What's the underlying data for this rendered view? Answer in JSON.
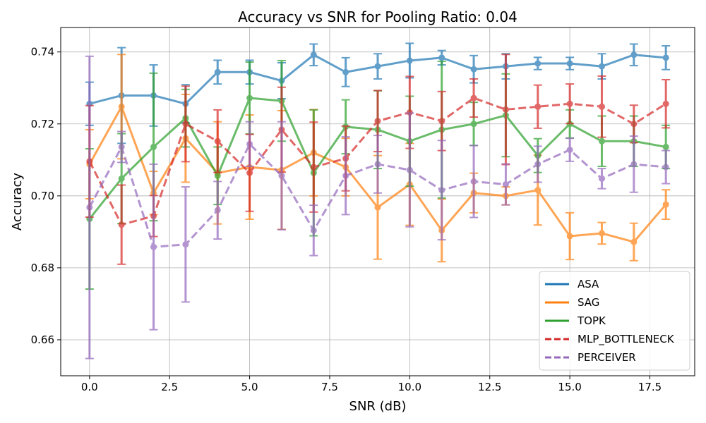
{
  "chart_data": {
    "type": "line",
    "title": "Accuracy vs SNR for Pooling Ratio: 0.04",
    "xlabel": "SNR (dB)",
    "ylabel": "Accuracy",
    "xlim": [
      -0.9,
      18.9
    ],
    "ylim": [
      0.65,
      0.7468
    ],
    "xticks": [
      0,
      2.5,
      5,
      7.5,
      10,
      12.5,
      15,
      17.5
    ],
    "xtick_labels": [
      "0.0",
      "2.5",
      "5.0",
      "7.5",
      "10.0",
      "12.5",
      "15.0",
      "17.5"
    ],
    "yticks": [
      0.66,
      0.68,
      0.7,
      0.72,
      0.74
    ],
    "ytick_labels": [
      "0.66",
      "0.68",
      "0.70",
      "0.72",
      "0.74"
    ],
    "grid": true,
    "legend_position": "lower-right",
    "x": [
      0,
      1,
      2,
      3,
      4,
      5,
      6,
      7,
      8,
      9,
      10,
      11,
      12,
      13,
      14,
      15,
      16,
      17,
      18
    ],
    "series": [
      {
        "name": "ASA",
        "color": "#1f77b4",
        "style": "solid",
        "values": [
          0.7256,
          0.7279,
          0.7279,
          0.7256,
          0.7344,
          0.7344,
          0.732,
          0.7392,
          0.7344,
          0.736,
          0.7376,
          0.7384,
          0.7352,
          0.736,
          0.7368,
          0.7368,
          0.736,
          0.7392,
          0.7384
        ],
        "errors": [
          0.006,
          0.0133,
          0.0085,
          0.0053,
          0.0033,
          0.0033,
          0.005,
          0.003,
          0.004,
          0.0035,
          0.0048,
          0.002,
          0.0038,
          0.0035,
          0.0017,
          0.0017,
          0.0035,
          0.003,
          0.0033
        ]
      },
      {
        "name": "SAG",
        "color": "#ff7f0e",
        "style": "solid",
        "values": [
          0.7088,
          0.7248,
          0.7008,
          0.716,
          0.7064,
          0.708,
          0.7072,
          0.712,
          0.708,
          0.6968,
          0.7032,
          0.6904,
          0.7008,
          0.7,
          0.7016,
          0.6888,
          0.6896,
          0.6872,
          0.6976
        ],
        "errors": [
          0.0096,
          0.0145,
          0.006,
          0.0122,
          0.0142,
          0.0145,
          0.0165,
          0.012,
          0.008,
          0.0144,
          0.0114,
          0.0087,
          0.0055,
          0.0025,
          0.0097,
          0.0065,
          0.003,
          0.0052,
          0.0041
        ]
      },
      {
        "name": "TOPK",
        "color": "#2ca02c",
        "style": "solid",
        "values": [
          0.6936,
          0.7048,
          0.7136,
          0.7216,
          0.7056,
          0.7272,
          0.7264,
          0.7064,
          0.7192,
          0.7184,
          0.7152,
          0.7184,
          0.72,
          0.7224,
          0.7112,
          0.72,
          0.7152,
          0.7152,
          0.7136
        ],
        "errors": [
          0.0195,
          0.0125,
          0.0205,
          0.008,
          0.008,
          0.01,
          0.0112,
          0.0175,
          0.0075,
          0.0108,
          0.0125,
          0.019,
          0.006,
          0.0115,
          0.0047,
          0.0039,
          0.007,
          0.007,
          0.006
        ]
      },
      {
        "name": "MLP_BOTTLENECK",
        "color": "#d62728",
        "style": "dashed",
        "values": [
          0.7096,
          0.692,
          0.6944,
          0.72,
          0.7152,
          0.7064,
          0.7184,
          0.708,
          0.7104,
          0.7208,
          0.7232,
          0.7208,
          0.7272,
          0.724,
          0.7248,
          0.7256,
          0.7248,
          0.72,
          0.7256
        ],
        "errors": [
          0.0155,
          0.011,
          0.0057,
          0.0105,
          0.0087,
          0.0107,
          0.0118,
          0.0125,
          0.009,
          0.0085,
          0.01,
          0.0082,
          0.0053,
          0.0153,
          0.006,
          0.0055,
          0.0085,
          0.0052,
          0.0067
        ]
      },
      {
        "name": "PERCEIVER",
        "color": "#9467bd",
        "style": "dashed",
        "values": [
          0.6968,
          0.7136,
          0.6858,
          0.6865,
          0.696,
          0.7144,
          0.7056,
          0.6904,
          0.7056,
          0.7088,
          0.7072,
          0.7016,
          0.704,
          0.7032,
          0.7088,
          0.7128,
          0.7048,
          0.7088,
          0.708
        ],
        "errors": [
          0.042,
          0.0043,
          0.023,
          0.016,
          0.008,
          0.0062,
          0.015,
          0.007,
          0.0108,
          0.008,
          0.0158,
          0.0138,
          0.01,
          0.0057,
          0.005,
          0.0032,
          0.0028,
          0.0078,
          0.0046
        ]
      }
    ]
  }
}
